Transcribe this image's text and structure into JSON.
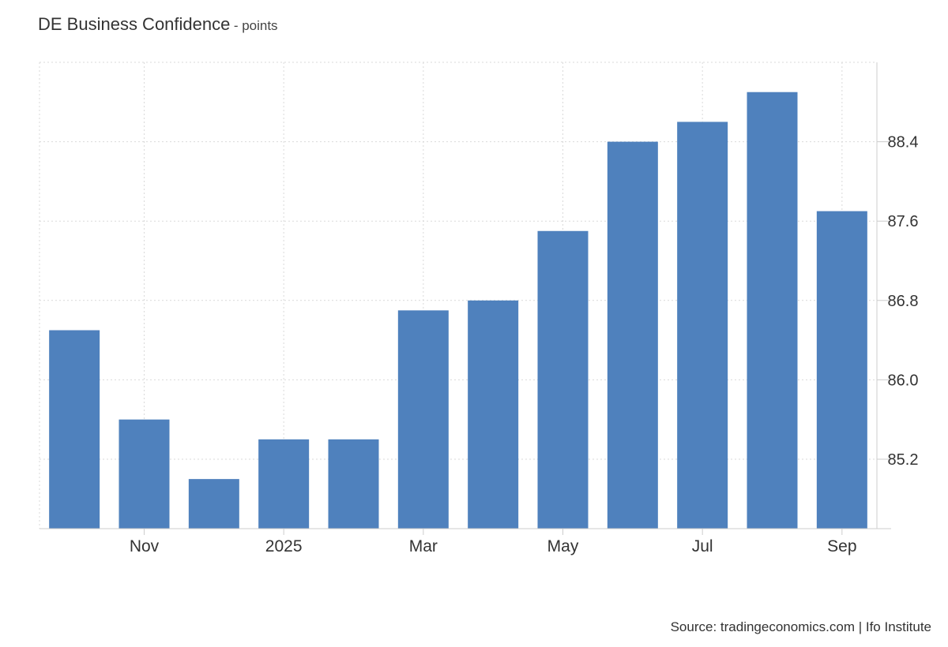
{
  "header": {
    "title": "DE Business Confidence",
    "subtitle": "- points"
  },
  "source": "Source: tradingeconomics.com | Ifo Institute",
  "colors": {
    "bar": "#4f81bd",
    "grid": "#d9d9d9",
    "axis": "#cccccc",
    "text": "#333333"
  },
  "chart_data": {
    "type": "bar",
    "title": "DE Business Confidence",
    "ylabel": "points",
    "categories": [
      "2024-10",
      "2024-11",
      "2024-12",
      "2025-01",
      "2025-02",
      "2025-03",
      "2025-04",
      "2025-05",
      "2025-06",
      "2025-07",
      "2025-08",
      "2025-09"
    ],
    "x_tick_labels": [
      {
        "category": "2024-11",
        "label": "Nov"
      },
      {
        "category": "2025-01",
        "label": "2025"
      },
      {
        "category": "2025-03",
        "label": "Mar"
      },
      {
        "category": "2025-05",
        "label": "May"
      },
      {
        "category": "2025-07",
        "label": "Jul"
      },
      {
        "category": "2025-09",
        "label": "Sep"
      }
    ],
    "values": [
      86.5,
      85.6,
      85.0,
      85.4,
      85.4,
      86.7,
      86.8,
      87.5,
      88.4,
      88.6,
      88.9,
      87.7
    ],
    "y_ticks": [
      85.2,
      86.0,
      86.8,
      87.6,
      88.4
    ],
    "ylim": [
      84.5,
      89.2
    ],
    "grid": true,
    "y_axis_position": "right"
  }
}
